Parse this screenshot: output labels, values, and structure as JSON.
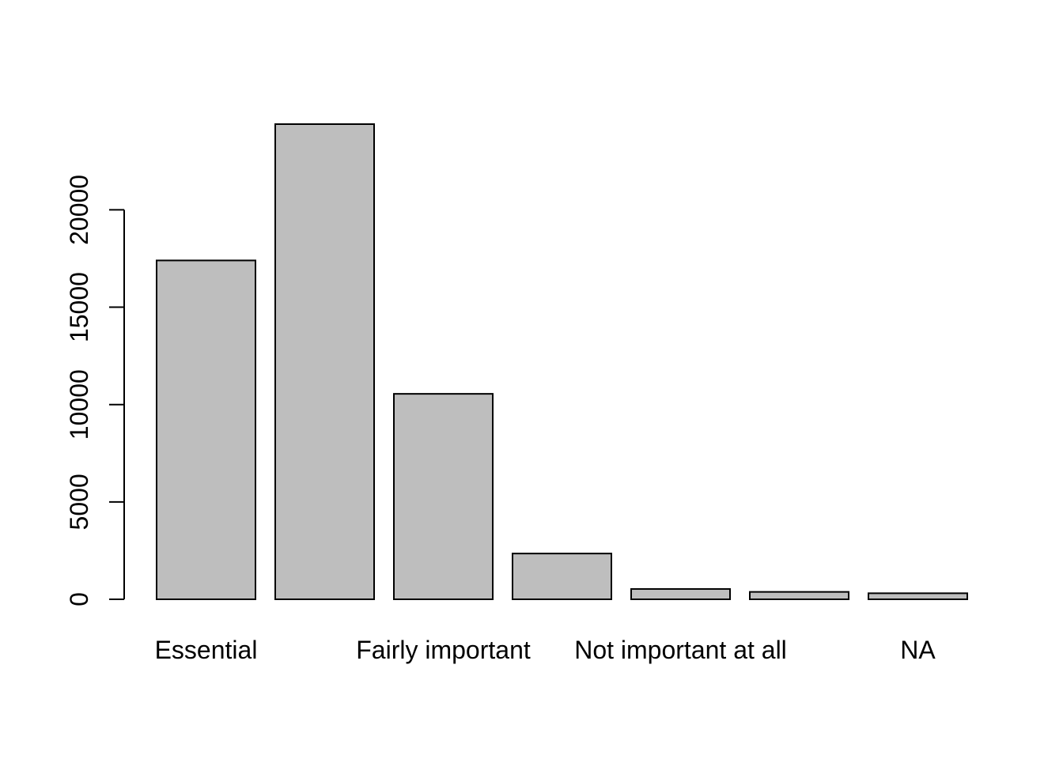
{
  "chart_data": {
    "type": "bar",
    "title": "",
    "xlabel": "",
    "ylabel": "",
    "categories": [
      "Essential",
      "",
      "Fairly important",
      "",
      "Not important at all",
      "",
      "NA"
    ],
    "values": [
      17400,
      24400,
      10550,
      2350,
      530,
      380,
      310
    ],
    "ylim": [
      0,
      24400
    ],
    "yticks": [
      0,
      5000,
      10000,
      15000,
      20000
    ],
    "ytick_labels": [
      "0",
      "5000",
      "10000",
      "15000",
      "20000"
    ],
    "grid": false,
    "legend": "none",
    "colors": {
      "bar_fill": "#bebebe",
      "bar_stroke": "#000000",
      "axis": "#000000"
    }
  }
}
